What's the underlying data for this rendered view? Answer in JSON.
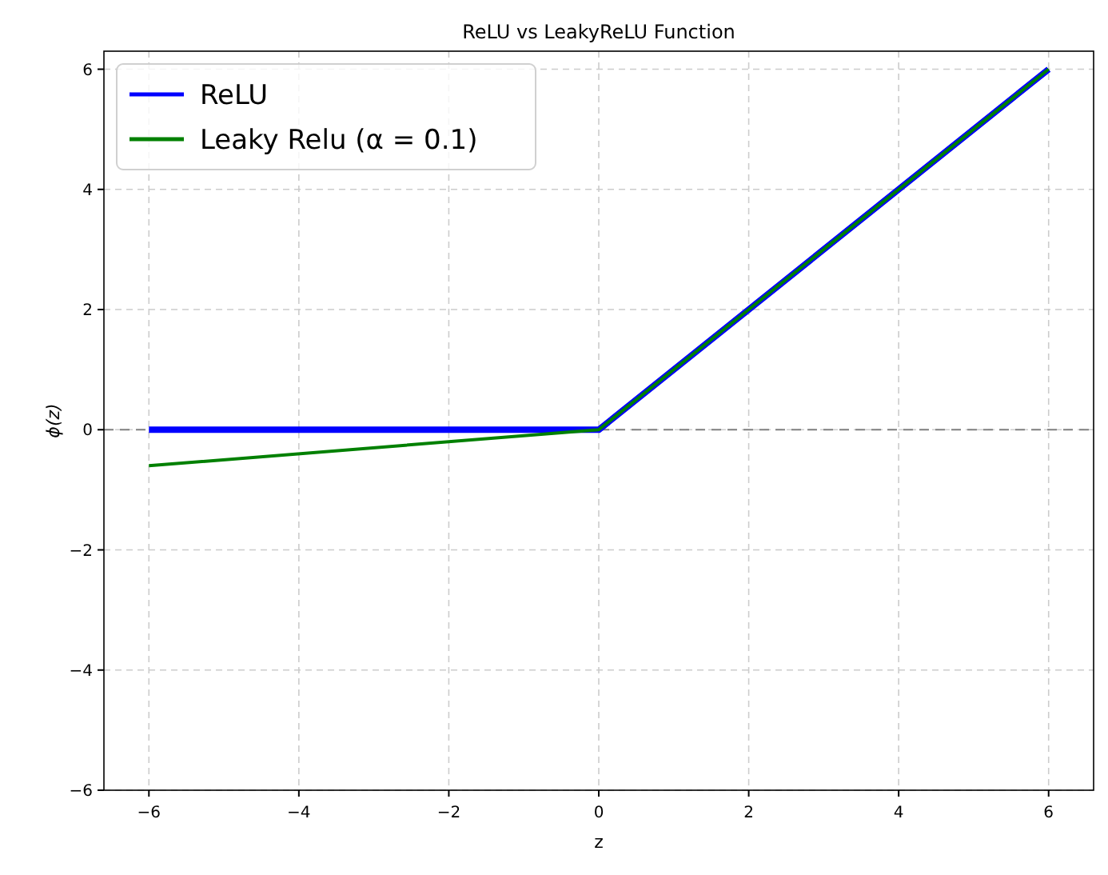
{
  "chart_data": {
    "type": "line",
    "title": "ReLU vs LeakyReLU Function",
    "xlabel": "z",
    "ylabel": "ϕ(z)",
    "xlim": [
      -6.6,
      6.6
    ],
    "xticks": [
      -6,
      -4,
      -2,
      0,
      2,
      4,
      6
    ],
    "ylim": [
      -6,
      6.3
    ],
    "yticks": [
      -6,
      -4,
      -2,
      0,
      2,
      4,
      6
    ],
    "series": [
      {
        "name": "ReLU",
        "color": "#0000ff",
        "x": [
          -6,
          0,
          6
        ],
        "values": [
          0,
          0,
          6
        ]
      },
      {
        "name": "Leaky Relu (α = 0.1)",
        "color": "#008000",
        "x": [
          -6,
          0,
          6
        ],
        "values": [
          -0.6,
          0,
          6
        ]
      }
    ],
    "ref_lines": [
      {
        "axis": "y",
        "value": 0,
        "color": "#808080",
        "line_style": "dashed"
      }
    ],
    "grid": true,
    "legend": "top left",
    "marker": "none",
    "line_style": "solid"
  }
}
